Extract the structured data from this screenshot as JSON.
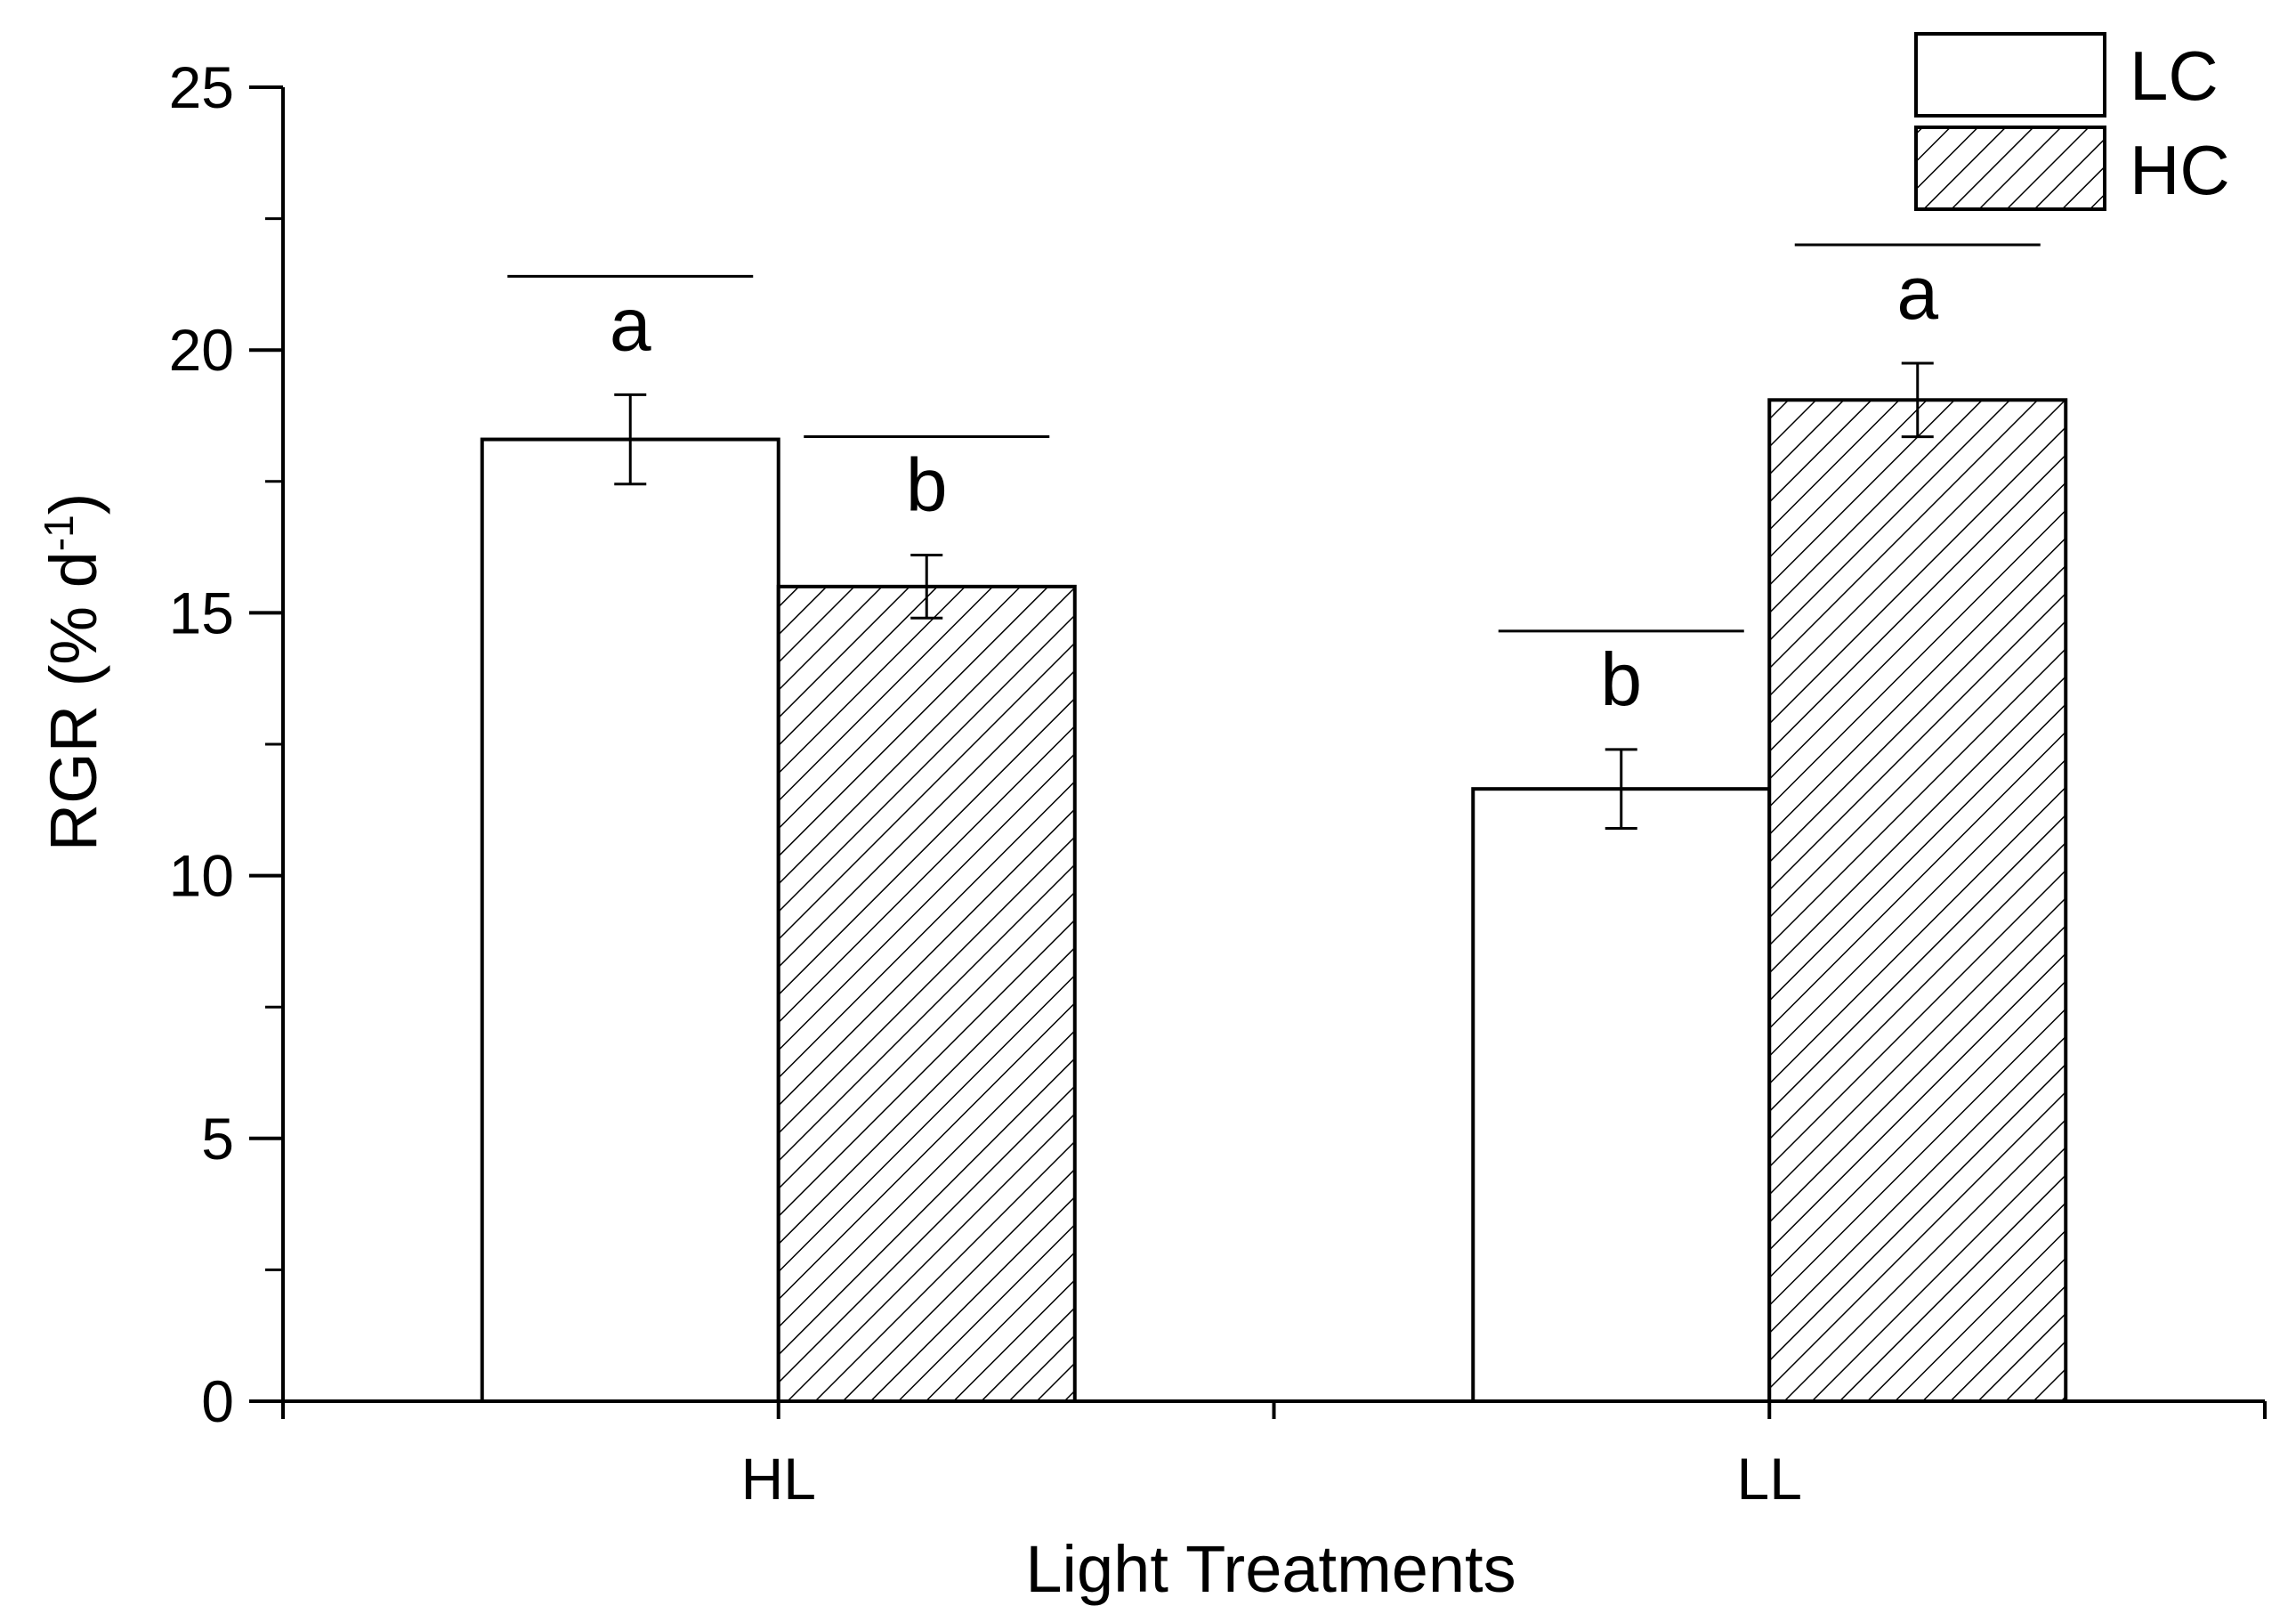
{
  "chart_data": {
    "type": "bar",
    "categories": [
      "HL",
      "LL"
    ],
    "series": [
      {
        "name": "LC",
        "values": [
          18.3,
          11.65
        ],
        "errors": [
          0.85,
          0.75
        ],
        "letters": [
          "a",
          "b"
        ],
        "pattern": "none"
      },
      {
        "name": "HC",
        "values": [
          15.5,
          19.05
        ],
        "errors": [
          0.6,
          0.7
        ],
        "letters": [
          "b",
          "a"
        ],
        "pattern": "diagonal-hatch"
      }
    ],
    "xlabel": "Light Treatments",
    "ylabel_main": "RGR (% d",
    "ylabel_sup": "-1",
    "ylabel_close": ")",
    "ylim": [
      0,
      25
    ],
    "yticks": [
      "0",
      "5",
      "10",
      "15",
      "20",
      "25"
    ],
    "legend_position": "top-right",
    "grid": false,
    "colors": {
      "bar_stroke": "#000000",
      "bar_fill": "#ffffff",
      "hatch": "#000000"
    }
  }
}
